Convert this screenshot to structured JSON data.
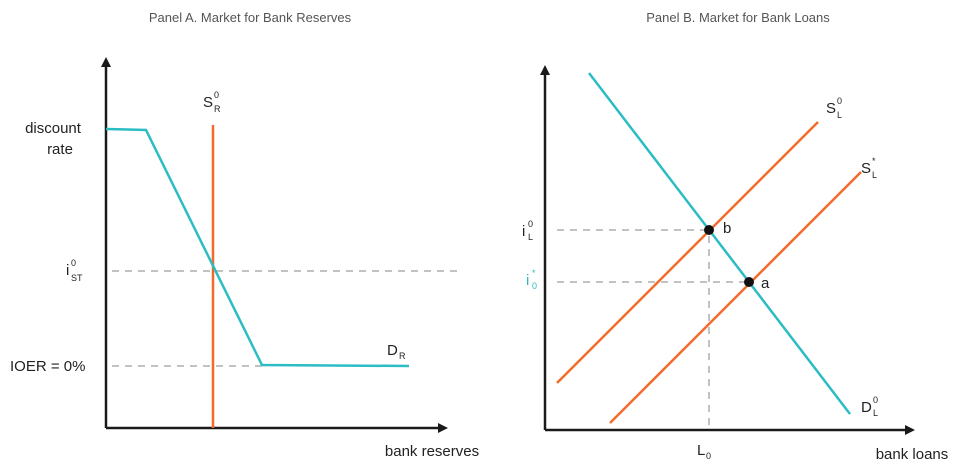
{
  "panel_a": {
    "title": "Panel A. Market for Bank Reserves",
    "y_labels": {
      "discount_line1": "discount",
      "discount_line2": "rate",
      "ist_main": "i",
      "ist_sup": "0",
      "ist_sub": "ST",
      "ioer": "IOER = 0%"
    },
    "supply_main": "S",
    "supply_sup": "0",
    "supply_sub": "R",
    "demand_main": "D",
    "demand_sub": "R",
    "x_label": "bank reserves"
  },
  "panel_b": {
    "title": "Panel B. Market for Bank Loans",
    "il0_main": "i",
    "il0_sup": "0",
    "il0_sub": "L",
    "i0star_main": "i",
    "i0star_sup": "*",
    "i0star_sub": "0",
    "supply0_main": "S",
    "supply0_sup": "0",
    "supply0_sub": "L",
    "supplystar_main": "S",
    "supplystar_sup": "*",
    "supplystar_sub": "L",
    "demand_main": "D",
    "demand_sup": "0",
    "demand_sub": "L",
    "point_b": "b",
    "point_a": "a",
    "l0_main": "L",
    "l0_sub": "0",
    "x_label": "bank loans"
  },
  "colors": {
    "demand": "#2bbcc4",
    "supply": "#f26b2b",
    "axis": "#1a1a1a",
    "guide": "#c2c2c2"
  }
}
